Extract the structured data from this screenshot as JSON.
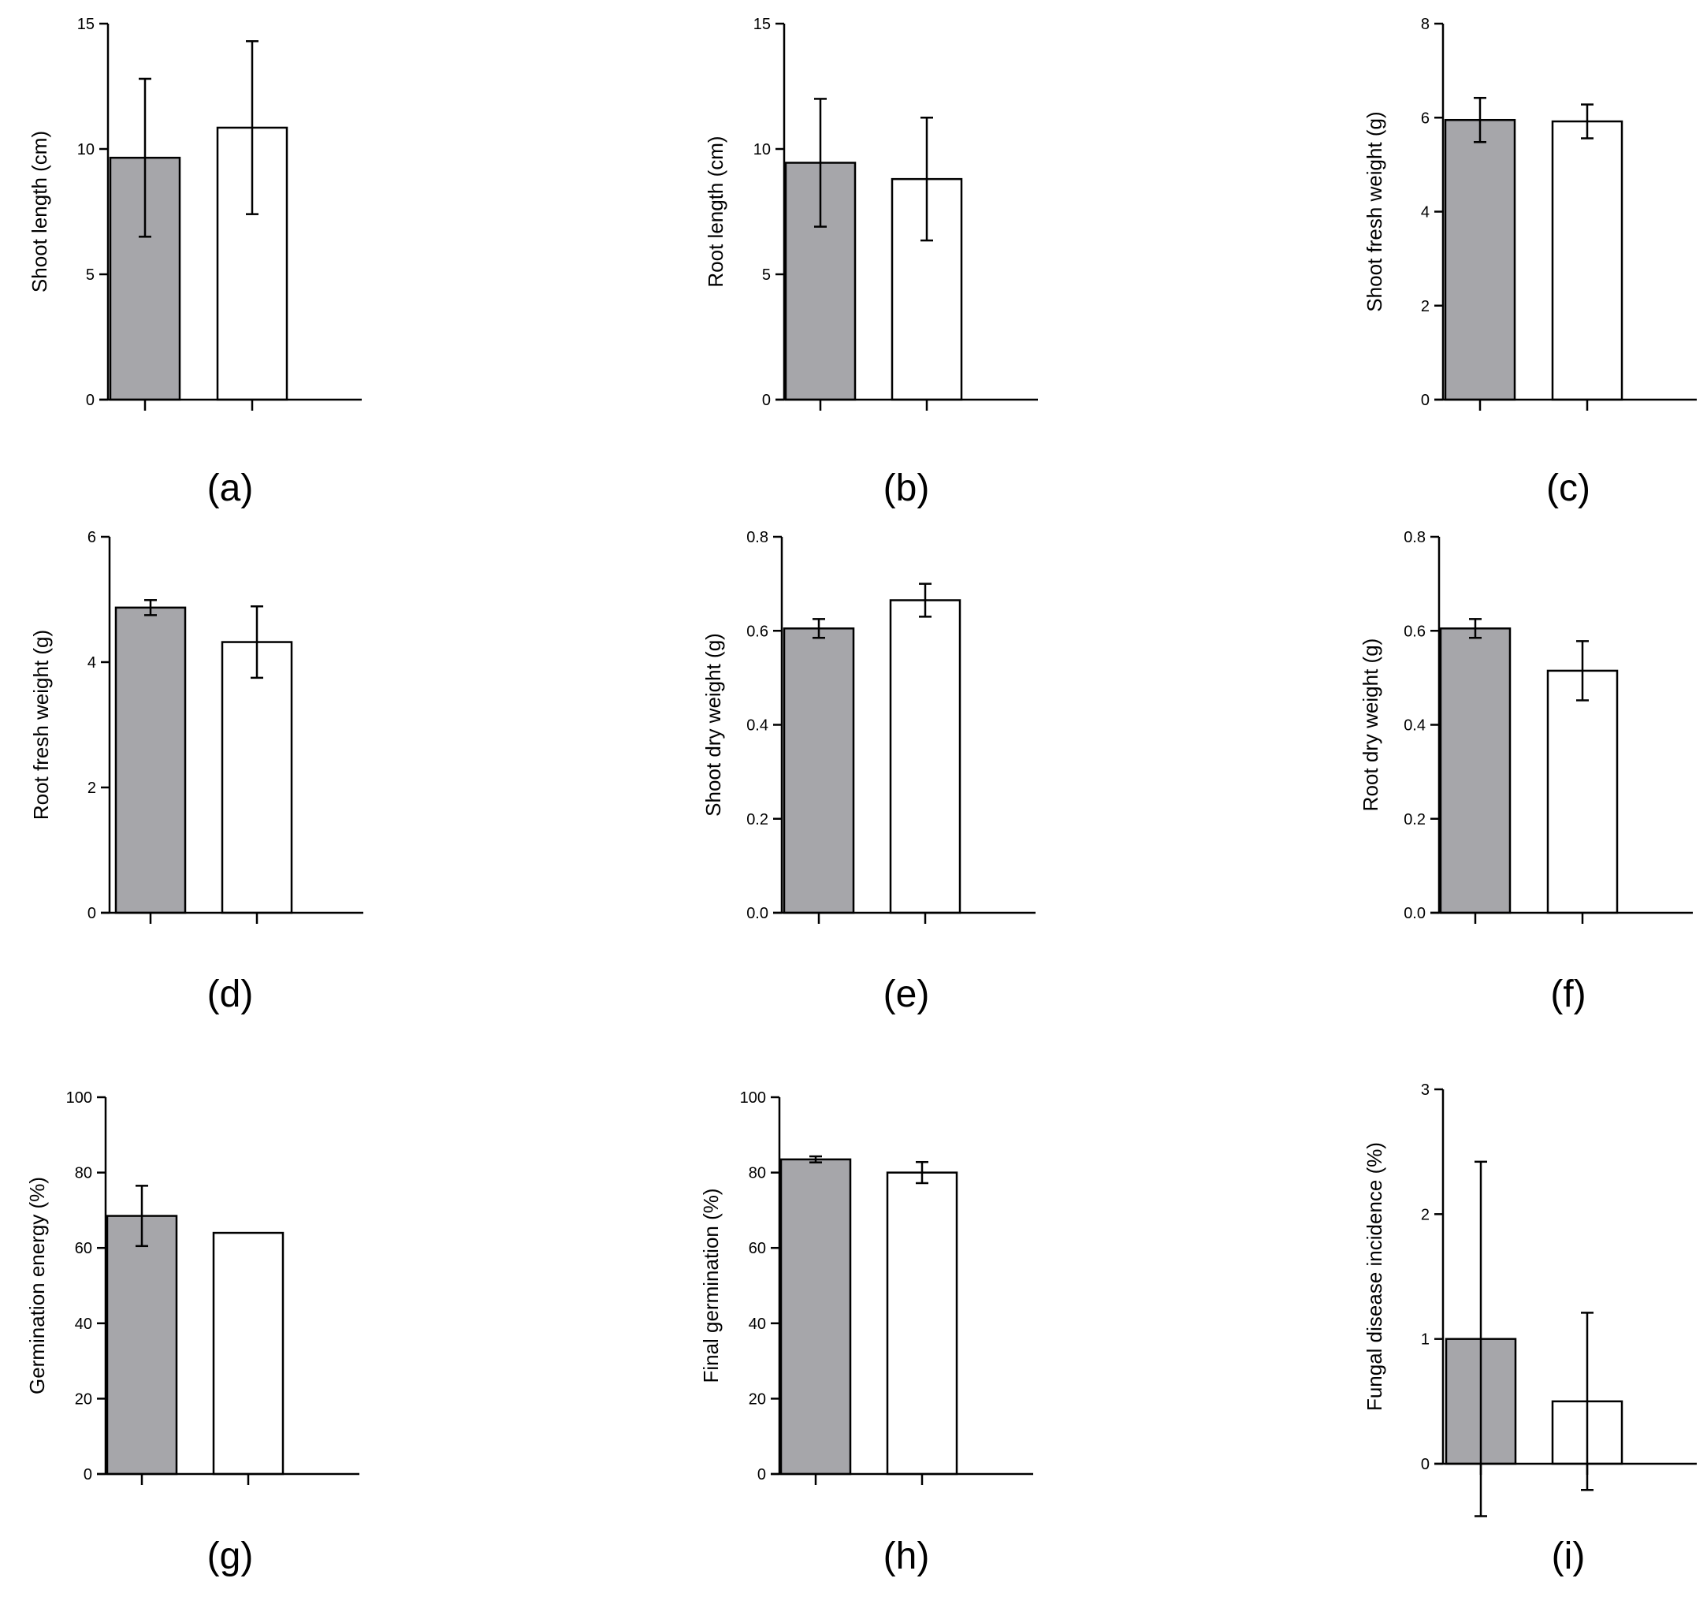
{
  "colors": {
    "treated": "#a6a6aa",
    "control": "#ffffff",
    "stroke": "#000000"
  },
  "chart_data": [
    {
      "type": "bar",
      "panel": "(a)",
      "ylabel": "Shoot length (cm)",
      "ylim": [
        0,
        15
      ],
      "yticks": [
        "0",
        "5",
        "10",
        "15"
      ],
      "series": [
        {
          "name": "bar-1",
          "values": [
            9.65
          ],
          "error": [
            3.15
          ]
        },
        {
          "name": "bar-2",
          "values": [
            10.85
          ],
          "error": [
            3.45
          ]
        }
      ]
    },
    {
      "type": "bar",
      "panel": "(b)",
      "ylabel": "Root length (cm)",
      "ylim": [
        0,
        15
      ],
      "yticks": [
        "0",
        "5",
        "10",
        "15"
      ],
      "series": [
        {
          "name": "bar-1",
          "values": [
            9.45
          ],
          "error": [
            2.55
          ]
        },
        {
          "name": "bar-2",
          "values": [
            8.8
          ],
          "error": [
            2.45
          ]
        }
      ]
    },
    {
      "type": "bar",
      "panel": "(c)",
      "ylabel": "Shoot fresh weight (g)",
      "ylim": [
        0,
        8
      ],
      "yticks": [
        "0",
        "2",
        "4",
        "6",
        "8"
      ],
      "series": [
        {
          "name": "bar-1",
          "values": [
            5.95
          ],
          "error": [
            0.47
          ]
        },
        {
          "name": "bar-2",
          "values": [
            5.92
          ],
          "error": [
            0.36
          ]
        }
      ]
    },
    {
      "type": "bar",
      "panel": "(d)",
      "ylabel": "Root fresh weight (g)",
      "ylim": [
        0,
        6
      ],
      "yticks": [
        "0",
        "2",
        "4",
        "6"
      ],
      "series": [
        {
          "name": "bar-1",
          "values": [
            4.87
          ],
          "error": [
            0.12
          ]
        },
        {
          "name": "bar-2",
          "values": [
            4.32
          ],
          "error": [
            0.57
          ]
        }
      ]
    },
    {
      "type": "bar",
      "panel": "(e)",
      "ylabel": "Shoot dry weight (g)",
      "ylim": [
        0,
        0.8
      ],
      "yticks": [
        "0.0",
        "0.2",
        "0.4",
        "0.6",
        "0.8"
      ],
      "series": [
        {
          "name": "bar-1",
          "values": [
            0.605
          ],
          "error": [
            0.02
          ]
        },
        {
          "name": "bar-2",
          "values": [
            0.665
          ],
          "error": [
            0.035
          ]
        }
      ]
    },
    {
      "type": "bar",
      "panel": "(f)",
      "ylabel": "Root dry weight (g)",
      "ylim": [
        0,
        0.8
      ],
      "yticks": [
        "0.0",
        "0.2",
        "0.4",
        "0.6",
        "0.8"
      ],
      "series": [
        {
          "name": "bar-1",
          "values": [
            0.605
          ],
          "error": [
            0.02
          ]
        },
        {
          "name": "bar-2",
          "values": [
            0.515
          ],
          "error": [
            0.063
          ]
        }
      ]
    },
    {
      "type": "bar",
      "panel": "(g)",
      "ylabel": "Germination energy (%)",
      "ylim": [
        0,
        100
      ],
      "yticks": [
        "0",
        "20",
        "40",
        "60",
        "80",
        "100"
      ],
      "series": [
        {
          "name": "bar-1",
          "values": [
            68.5
          ],
          "error": [
            8
          ]
        },
        {
          "name": "bar-2",
          "values": [
            64
          ],
          "error": [
            0
          ]
        }
      ]
    },
    {
      "type": "bar",
      "panel": "(h)",
      "ylabel": "Final germination (%)",
      "ylim": [
        0,
        100
      ],
      "yticks": [
        "0",
        "20",
        "40",
        "60",
        "80",
        "100"
      ],
      "series": [
        {
          "name": "bar-1",
          "values": [
            83.5
          ],
          "error": [
            0.8
          ]
        },
        {
          "name": "bar-2",
          "values": [
            80
          ],
          "error": [
            2.8
          ]
        }
      ]
    },
    {
      "type": "bar",
      "panel": "(i)",
      "ylabel": "Fungal disease incidence  (%)",
      "ylim": [
        0,
        3
      ],
      "yticks": [
        "0",
        "1",
        "2",
        "3"
      ],
      "series": [
        {
          "name": "bar-1",
          "values": [
            1
          ],
          "error": [
            1.42
          ]
        },
        {
          "name": "bar-2",
          "values": [
            0.5
          ],
          "error": [
            0.71
          ]
        }
      ]
    }
  ]
}
